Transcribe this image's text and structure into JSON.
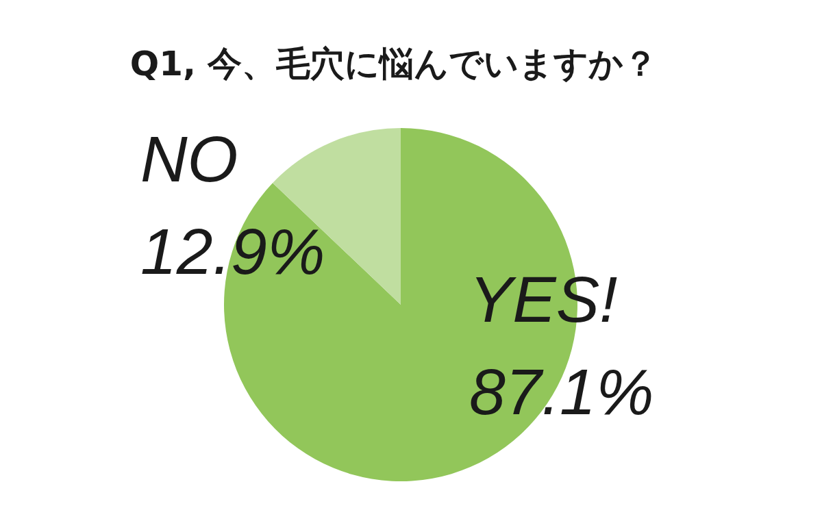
{
  "chart_data": {
    "type": "pie",
    "title": "Q1, 今、毛穴に悩んでいますか？",
    "categories": [
      "YES!",
      "NO"
    ],
    "values": [
      87.1,
      12.9
    ],
    "value_labels": [
      "87.1%",
      "12.9%"
    ],
    "colors": [
      "#92c65a",
      "#c0dea0"
    ]
  }
}
